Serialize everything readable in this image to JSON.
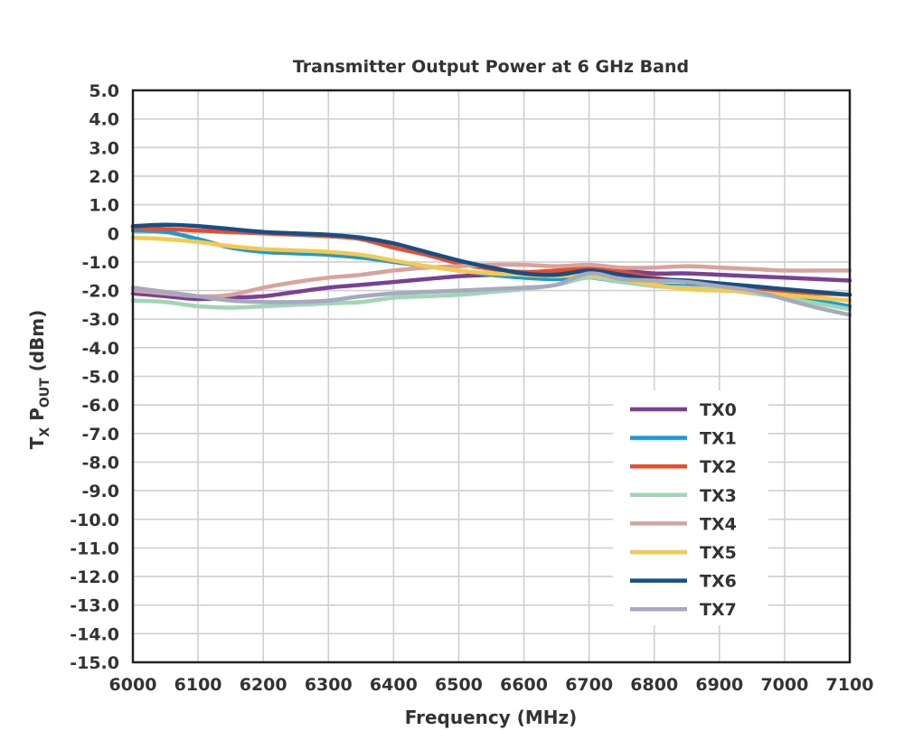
{
  "chart_data": {
    "type": "line",
    "title": "Transmitter Output Power at 6 GHz Band",
    "xlabel": "Frequency (MHz)",
    "ylabel": {
      "main": "T",
      "sub1": "X",
      "mid": " P",
      "sub2": "OUT",
      "tail": " (dBm)"
    },
    "xlim": [
      6000,
      7100
    ],
    "ylim": [
      -15,
      5
    ],
    "xticks": [
      "6000",
      "6100",
      "6200",
      "6300",
      "6400",
      "6500",
      "6600",
      "6700",
      "6800",
      "6900",
      "7000",
      "7100"
    ],
    "yticks": [
      "5.0",
      "4.0",
      "3.0",
      "2.0",
      "1.0",
      "0",
      "-1.0",
      "-2.0",
      "-3.0",
      "-4.0",
      "-5.0",
      "-6.0",
      "-7.0",
      "-8.0",
      "-9.0",
      "-10.0",
      "-11.0",
      "-12.0",
      "-13.0",
      "-14.0",
      "-15.0"
    ],
    "grid": true,
    "legend_position": "bottom-right",
    "x": [
      6000,
      6050,
      6100,
      6150,
      6200,
      6250,
      6300,
      6350,
      6400,
      6450,
      6500,
      6550,
      6600,
      6650,
      6700,
      6750,
      6800,
      6850,
      6900,
      6950,
      7000,
      7050,
      7100
    ],
    "series": [
      {
        "name": "TX0",
        "color": "#7b3f98",
        "values": [
          -2.1,
          -2.2,
          -2.3,
          -2.25,
          -2.2,
          -2.05,
          -1.9,
          -1.8,
          -1.7,
          -1.6,
          -1.5,
          -1.45,
          -1.4,
          -1.35,
          -1.25,
          -1.3,
          -1.4,
          -1.4,
          -1.45,
          -1.5,
          -1.55,
          -1.6,
          -1.65
        ]
      },
      {
        "name": "TX1",
        "color": "#1a9ad6",
        "values": [
          0.1,
          0.05,
          -0.2,
          -0.5,
          -0.65,
          -0.7,
          -0.75,
          -0.85,
          -1.0,
          -1.15,
          -1.3,
          -1.45,
          -1.55,
          -1.6,
          -1.55,
          -1.7,
          -1.8,
          -1.85,
          -1.9,
          -2.0,
          -2.15,
          -2.35,
          -2.55
        ]
      },
      {
        "name": "TX2",
        "color": "#e84c2b",
        "values": [
          0.2,
          0.15,
          0.1,
          0.05,
          0.0,
          -0.05,
          -0.1,
          -0.2,
          -0.5,
          -0.75,
          -1.05,
          -1.25,
          -1.35,
          -1.3,
          -1.2,
          -1.35,
          -1.55,
          -1.7,
          -1.85,
          -1.95,
          -2.05,
          -2.1,
          -2.15
        ]
      },
      {
        "name": "TX3",
        "color": "#9fd6b4",
        "values": [
          -2.35,
          -2.4,
          -2.55,
          -2.6,
          -2.55,
          -2.5,
          -2.45,
          -2.4,
          -2.25,
          -2.2,
          -2.15,
          -2.05,
          -1.95,
          -1.8,
          -1.55,
          -1.7,
          -1.85,
          -1.9,
          -1.95,
          -2.1,
          -2.25,
          -2.45,
          -2.65
        ]
      },
      {
        "name": "TX4",
        "color": "#d9a39c",
        "values": [
          -2.0,
          -2.1,
          -2.2,
          -2.15,
          -1.9,
          -1.7,
          -1.55,
          -1.45,
          -1.3,
          -1.2,
          -1.15,
          -1.1,
          -1.1,
          -1.15,
          -1.1,
          -1.2,
          -1.2,
          -1.15,
          -1.2,
          -1.25,
          -1.3,
          -1.3,
          -1.3
        ]
      },
      {
        "name": "TX5",
        "color": "#f7c94a",
        "values": [
          -0.15,
          -0.2,
          -0.3,
          -0.45,
          -0.55,
          -0.6,
          -0.65,
          -0.75,
          -0.95,
          -1.15,
          -1.3,
          -1.4,
          -1.45,
          -1.5,
          -1.45,
          -1.6,
          -1.8,
          -1.95,
          -2.0,
          -2.05,
          -2.15,
          -2.25,
          -2.35
        ]
      },
      {
        "name": "TX6",
        "color": "#154f86",
        "values": [
          0.25,
          0.3,
          0.25,
          0.15,
          0.05,
          0.0,
          -0.05,
          -0.15,
          -0.35,
          -0.65,
          -0.95,
          -1.2,
          -1.4,
          -1.45,
          -1.3,
          -1.45,
          -1.6,
          -1.65,
          -1.75,
          -1.85,
          -1.95,
          -2.05,
          -2.15
        ]
      },
      {
        "name": "TX7",
        "color": "#a7a9bf",
        "values": [
          -1.9,
          -2.05,
          -2.2,
          -2.35,
          -2.4,
          -2.4,
          -2.35,
          -2.2,
          -2.1,
          -2.05,
          -2.0,
          -1.95,
          -1.9,
          -1.8,
          -1.4,
          -1.6,
          -1.65,
          -1.7,
          -1.85,
          -2.0,
          -2.3,
          -2.6,
          -2.85
        ]
      }
    ]
  }
}
